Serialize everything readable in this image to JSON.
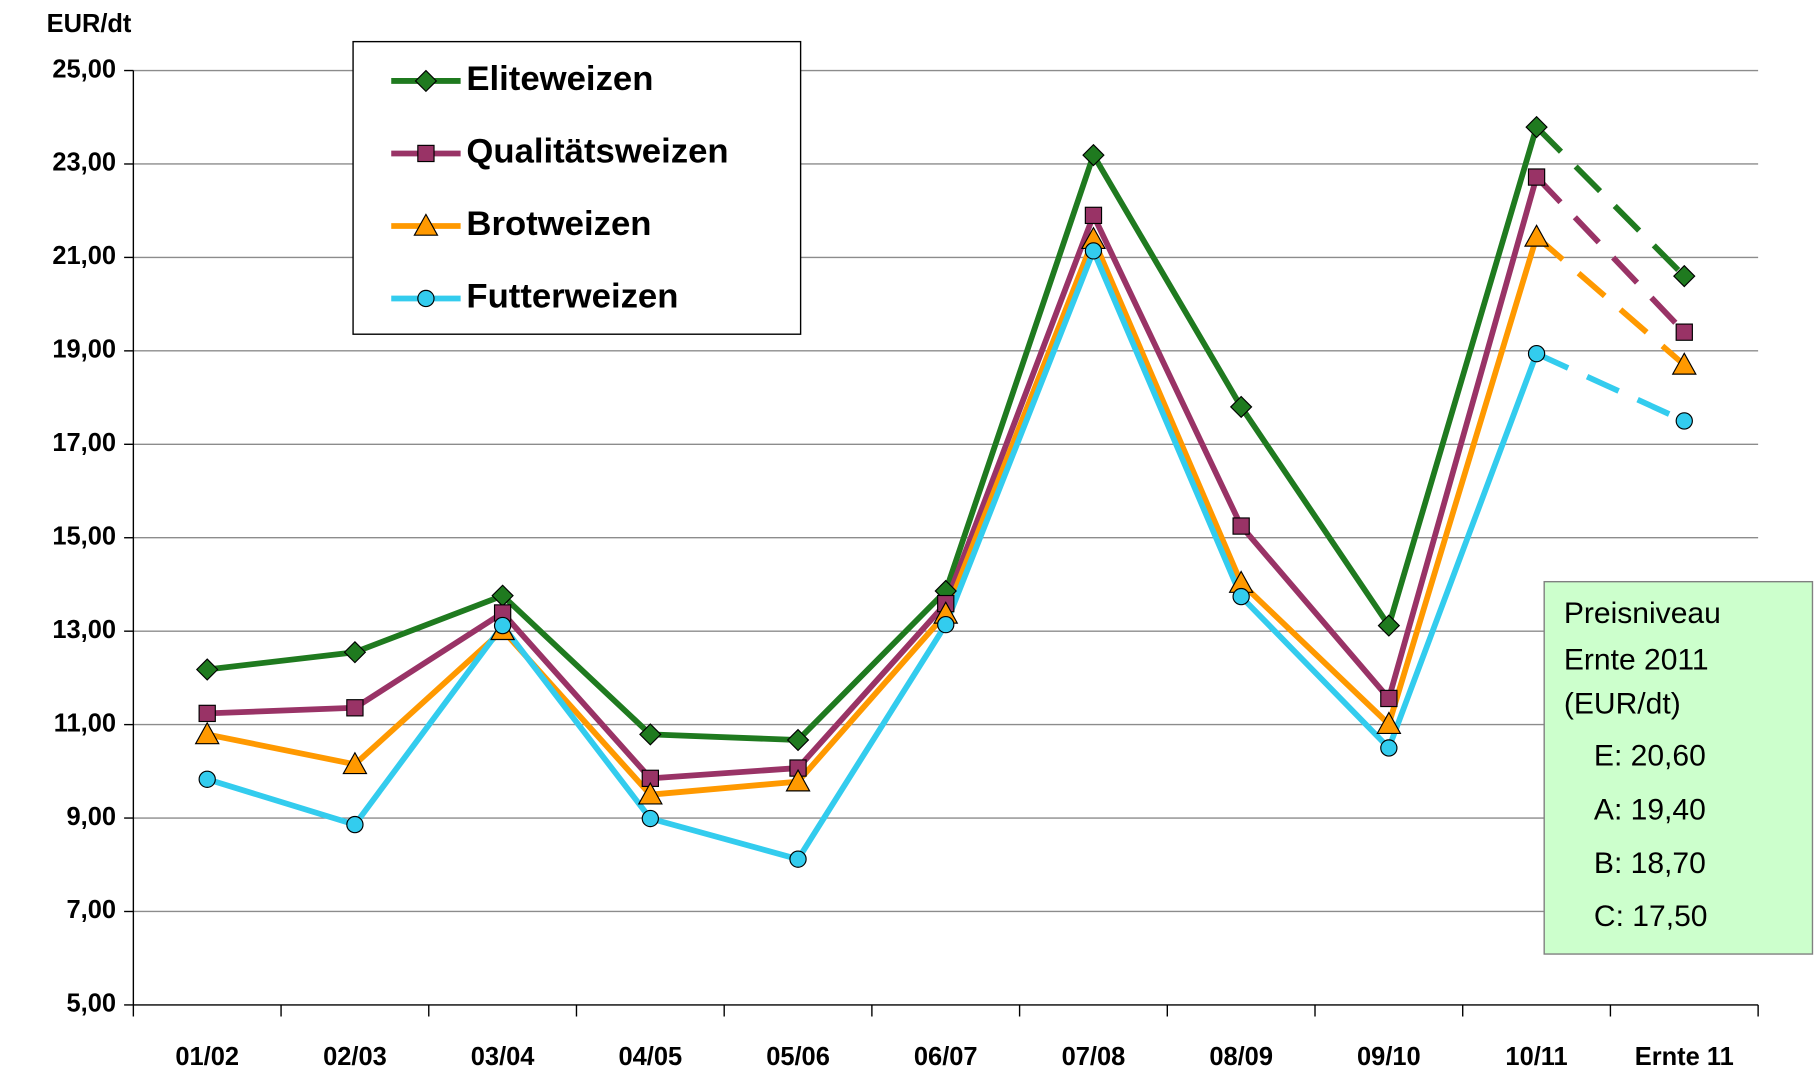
{
  "chart_data": {
    "type": "line",
    "y_label": "EUR/dt",
    "categories": [
      "01/02",
      "02/03",
      "03/04",
      "04/05",
      "05/06",
      "06/07",
      "07/08",
      "08/09",
      "09/10",
      "10/11",
      "Ernte 11"
    ],
    "series": [
      {
        "name": "Eliteweizen",
        "color": "#1f7a1f",
        "marker": "diamond",
        "values": [
          12.18,
          12.55,
          13.76,
          10.79,
          10.67,
          13.86,
          23.19,
          17.8,
          13.12,
          23.79,
          20.6
        ]
      },
      {
        "name": "Qualitätsweizen",
        "color": "#993366",
        "marker": "square",
        "values": [
          11.24,
          11.36,
          13.39,
          9.85,
          10.07,
          13.59,
          21.9,
          15.25,
          11.56,
          22.72,
          19.4
        ]
      },
      {
        "name": "Brotweizen",
        "color": "#ff9900",
        "marker": "triangle",
        "values": [
          10.79,
          10.15,
          13.02,
          9.5,
          9.78,
          13.37,
          21.39,
          14.03,
          11.01,
          21.44,
          18.7
        ]
      },
      {
        "name": "Futterweizen",
        "color": "#33ccee",
        "marker": "circle",
        "values": [
          9.83,
          8.86,
          13.12,
          8.99,
          8.12,
          13.14,
          21.14,
          13.74,
          10.5,
          18.94,
          17.5
        ]
      }
    ],
    "dashed_last_segment": true,
    "ylim": [
      5,
      25
    ],
    "yticks": [
      {
        "value": 5,
        "label": "5,00"
      },
      {
        "value": 7,
        "label": "7,00"
      },
      {
        "value": 9,
        "label": "9,00"
      },
      {
        "value": 11,
        "label": "11,00"
      },
      {
        "value": 13,
        "label": "13,00"
      },
      {
        "value": 15,
        "label": "15,00"
      },
      {
        "value": 17,
        "label": "17,00"
      },
      {
        "value": 19,
        "label": "19,00"
      },
      {
        "value": 21,
        "label": "21,00"
      },
      {
        "value": 23,
        "label": "23,00"
      },
      {
        "value": 25,
        "label": "25,00"
      }
    ],
    "grid": true,
    "annotation": [
      "Preisniveau",
      "Ernte 2011",
      "(EUR/dt)",
      "E: 20,60",
      "A: 19,40",
      "B: 18,70",
      "C: 17,50"
    ]
  }
}
